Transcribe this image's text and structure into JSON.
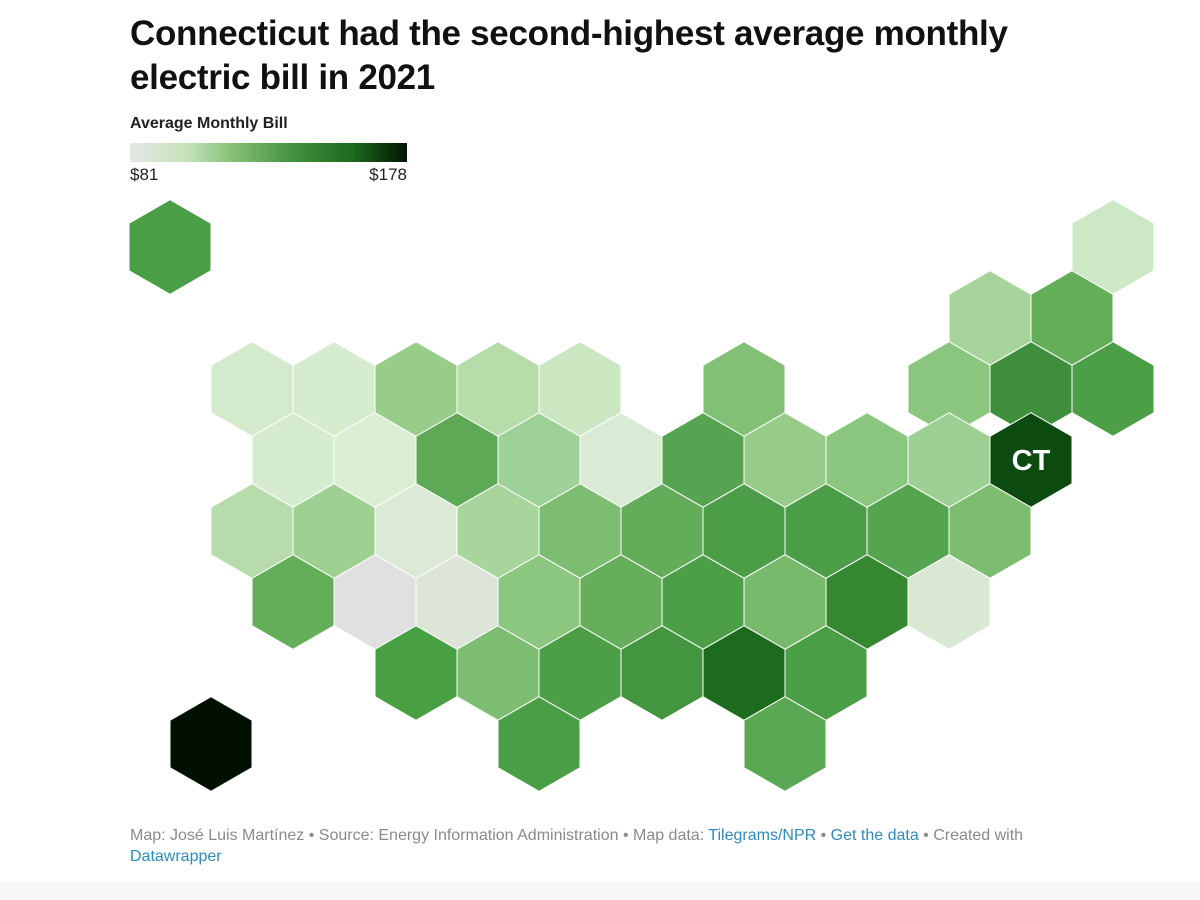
{
  "title": "Connecticut had the second-highest average monthly electric bill in 2021",
  "legend": {
    "title": "Average Monthly Bill",
    "min_label": "$81",
    "max_label": "$178",
    "colors": [
      "#e6e6e6",
      "#c6e3bd",
      "#7cba6b",
      "#3e8f3e",
      "#1d6b1d",
      "#041404"
    ]
  },
  "map": {
    "highlight_label": "CT",
    "cells": [
      {
        "id": "AK",
        "col": 0,
        "row": 0,
        "color": "#4a9e46"
      },
      {
        "id": "ME",
        "col": 11.5,
        "row": 0,
        "color": "#cce8c4"
      },
      {
        "id": "VT",
        "col": 10,
        "row": 1,
        "color": "#a6d49a"
      },
      {
        "id": "NH",
        "col": 11,
        "row": 1,
        "color": "#64ad59"
      },
      {
        "id": "WA",
        "col": 1,
        "row": 2,
        "color": "#d3ebcc"
      },
      {
        "id": "ID",
        "col": 2,
        "row": 2,
        "color": "#d5ecce"
      },
      {
        "id": "MT",
        "col": 3,
        "row": 2,
        "color": "#97cc89"
      },
      {
        "id": "ND",
        "col": 4,
        "row": 2,
        "color": "#b5dca9"
      },
      {
        "id": "MN",
        "col": 5,
        "row": 2,
        "color": "#cbe7c2"
      },
      {
        "id": "MI",
        "col": 7,
        "row": 2,
        "color": "#82c175"
      },
      {
        "id": "NY",
        "col": 9.5,
        "row": 2,
        "color": "#8ac67d"
      },
      {
        "id": "MA",
        "col": 10.5,
        "row": 2,
        "color": "#3e8e3b"
      },
      {
        "id": "RI",
        "col": 11.5,
        "row": 2,
        "color": "#4c9f47"
      },
      {
        "id": "OR",
        "col": 1.5,
        "row": 3,
        "color": "#d6ecd0"
      },
      {
        "id": "WY",
        "col": 2.5,
        "row": 3,
        "color": "#d9eed3"
      },
      {
        "id": "SD",
        "col": 3.5,
        "row": 3,
        "color": "#5ea956"
      },
      {
        "id": "IA",
        "col": 4.5,
        "row": 3,
        "color": "#9ed197"
      },
      {
        "id": "WI",
        "col": 5.5,
        "row": 3,
        "color": "#d9ead5"
      },
      {
        "id": "IN",
        "col": 6.5,
        "row": 3,
        "color": "#56a451"
      },
      {
        "id": "OH",
        "col": 7.5,
        "row": 3,
        "color": "#97cb8a"
      },
      {
        "id": "PA",
        "col": 8.5,
        "row": 3,
        "color": "#8ac67e"
      },
      {
        "id": "NJ",
        "col": 9.5,
        "row": 3,
        "color": "#9ed093"
      },
      {
        "id": "CT",
        "col": 10.5,
        "row": 3,
        "color": "#0d4a10"
      },
      {
        "id": "CA",
        "col": 1,
        "row": 4,
        "color": "#b7dbab"
      },
      {
        "id": "NV",
        "col": 2,
        "row": 4,
        "color": "#9ed092"
      },
      {
        "id": "UT",
        "col": 3,
        "row": 4,
        "color": "#dbe9d6"
      },
      {
        "id": "NE",
        "col": 4,
        "row": 4,
        "color": "#a8d59c"
      },
      {
        "id": "IL",
        "col": 5,
        "row": 4,
        "color": "#7dbd71"
      },
      {
        "id": "KY",
        "col": 6,
        "row": 4,
        "color": "#63ad5a"
      },
      {
        "id": "WV",
        "col": 7,
        "row": 4,
        "color": "#4b9e47"
      },
      {
        "id": "VA",
        "col": 8,
        "row": 4,
        "color": "#4b9e47"
      },
      {
        "id": "MD",
        "col": 9,
        "row": 4,
        "color": "#55a450"
      },
      {
        "id": "DE",
        "col": 10,
        "row": 4,
        "color": "#7dbd70"
      },
      {
        "id": "AZ",
        "col": 1.5,
        "row": 5,
        "color": "#64ad59"
      },
      {
        "id": "CO",
        "col": 2.5,
        "row": 5,
        "color": "#e0e0e0"
      },
      {
        "id": "NM",
        "col": 3.5,
        "row": 5,
        "color": "#dde5d9"
      },
      {
        "id": "KS",
        "col": 4.5,
        "row": 5,
        "color": "#8cc780"
      },
      {
        "id": "MO",
        "col": 5.5,
        "row": 5,
        "color": "#66ae5c"
      },
      {
        "id": "TN",
        "col": 6.5,
        "row": 5,
        "color": "#4c9f47"
      },
      {
        "id": "NC",
        "col": 7.5,
        "row": 5,
        "color": "#78ba6c"
      },
      {
        "id": "SC",
        "col": 8.5,
        "row": 5,
        "color": "#35882f"
      },
      {
        "id": "DC",
        "col": 9.5,
        "row": 5,
        "color": "#d9e8d2"
      },
      {
        "id": "OK",
        "col": 3,
        "row": 6,
        "color": "#48a043"
      },
      {
        "id": "LA",
        "col": 4,
        "row": 6,
        "color": "#7dbd71"
      },
      {
        "id": "AR",
        "col": 5,
        "row": 6,
        "color": "#4c9f47"
      },
      {
        "id": "MS",
        "col": 6,
        "row": 6,
        "color": "#43963f"
      },
      {
        "id": "AL",
        "col": 7,
        "row": 6,
        "color": "#1d6b1d"
      },
      {
        "id": "GA",
        "col": 8,
        "row": 6,
        "color": "#4a9e46"
      },
      {
        "id": "HI",
        "col": 0.5,
        "row": 7,
        "color": "#021002"
      },
      {
        "id": "TX",
        "col": 4.5,
        "row": 7,
        "color": "#4a9e46"
      },
      {
        "id": "FL",
        "col": 7.5,
        "row": 7,
        "color": "#5aa754"
      }
    ]
  },
  "footer": {
    "credit": "Map: José Luis Martínez • Source: Energy Information Administration • Map data: ",
    "map_data_link": "Tilegrams/NPR",
    "sep": " • ",
    "get_data_link": "Get the data",
    "created": " • Created with ",
    "tool_link": "Datawrapper"
  }
}
